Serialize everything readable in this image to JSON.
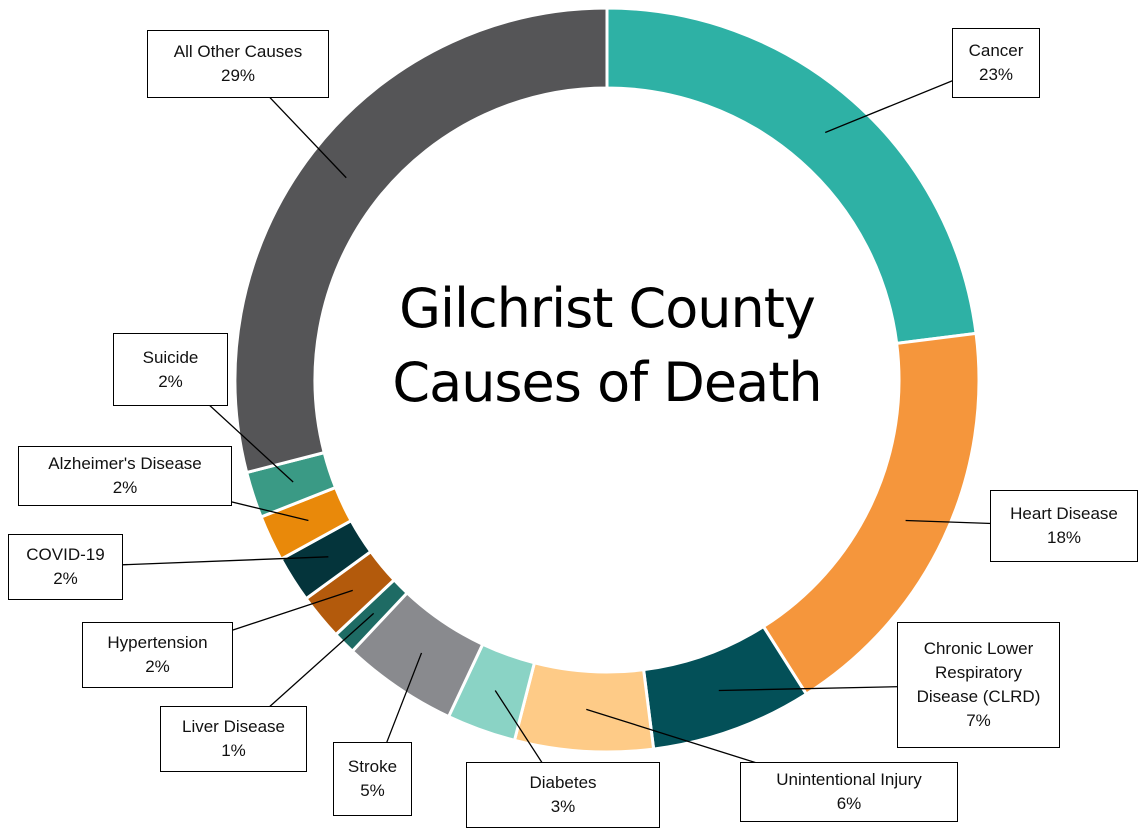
{
  "chart_data": {
    "type": "donut",
    "title": "Gilchrist County Causes of Death",
    "categories": [
      "Cancer",
      "Heart Disease",
      "Chronic Lower Respiratory Disease (CLRD)",
      "Unintentional Injury",
      "Diabetes",
      "Stroke",
      "Liver Disease",
      "Hypertension",
      "COVID-19",
      "Alzheimer's Disease",
      "Suicide",
      "All Other Causes"
    ],
    "values": [
      23,
      18,
      7,
      6,
      3,
      5,
      1,
      2,
      2,
      2,
      2,
      29
    ],
    "value_labels": [
      "23%",
      "18%",
      "7%",
      "6%",
      "3%",
      "5%",
      "1%",
      "2%",
      "2%",
      "2%",
      "2%",
      "29%"
    ],
    "colors": [
      "#2eb1a5",
      "#f5963c",
      "#035058",
      "#fecb87",
      "#8ad3c5",
      "#898a8e",
      "#1e6b64",
      "#b35a0c",
      "#04343b",
      "#e9890a",
      "#3a9a85",
      "#555557"
    ]
  }
}
